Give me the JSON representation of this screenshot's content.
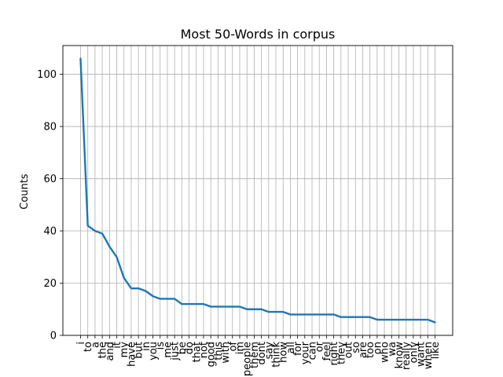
{
  "chart_data": {
    "type": "line",
    "title": "Most 50-Words in corpus",
    "xlabel": "",
    "ylabel": "Counts",
    "ylim": [
      0,
      111
    ],
    "yticks": [
      0,
      20,
      40,
      60,
      80,
      100
    ],
    "grid": true,
    "legend": "none",
    "colors": {
      "line": "#1f77b4",
      "grid": "#b0b0b0",
      "axes": "#000000"
    },
    "categories": [
      "i",
      "to",
      "a",
      "the",
      "and",
      "it",
      "my",
      "have",
      "but",
      "in",
      "you",
      "is",
      "me",
      "just",
      "be",
      "do",
      "that",
      "not",
      "good",
      "this",
      "with",
      "of",
      "im",
      "people",
      "them",
      "dont",
      "say",
      "think",
      "how",
      "all",
      "for",
      "your",
      "can",
      "or",
      "feel",
      "right",
      "they",
      "out",
      "so",
      "are",
      "too",
      "on",
      "who",
      "wa",
      "know",
      "really",
      "only",
      "want",
      "when",
      "like"
    ],
    "series": [
      {
        "values": [
          106,
          42,
          40,
          39,
          34,
          30,
          22,
          18,
          18,
          17,
          15,
          14,
          14,
          14,
          12,
          12,
          12,
          12,
          11,
          11,
          11,
          11,
          11,
          10,
          10,
          10,
          9,
          9,
          9,
          8,
          8,
          8,
          8,
          8,
          8,
          8,
          7,
          7,
          7,
          7,
          7,
          6,
          6,
          6,
          6,
          6,
          6,
          6,
          6,
          5
        ]
      }
    ]
  }
}
